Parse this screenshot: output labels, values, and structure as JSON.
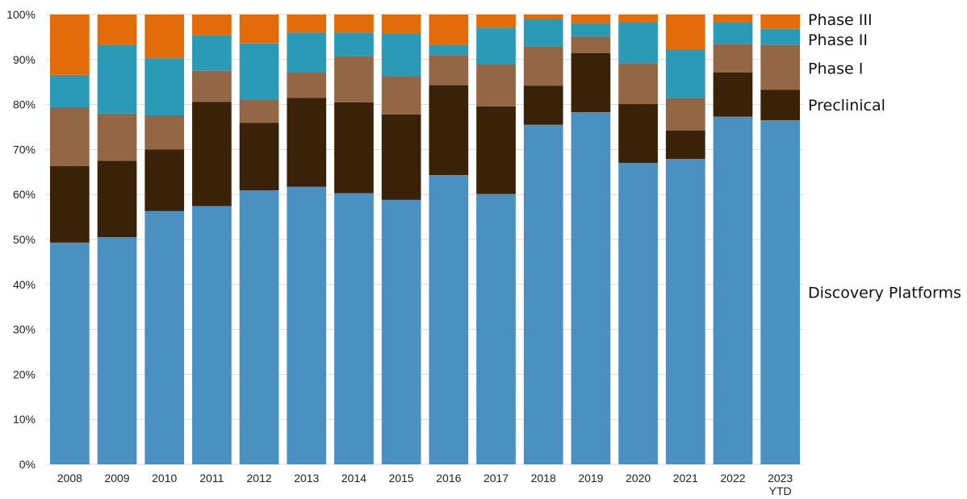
{
  "chart_data": {
    "type": "bar",
    "stacked": true,
    "percent_stacked": true,
    "title": "",
    "xlabel": "",
    "ylabel": "",
    "ylim": [
      0,
      100
    ],
    "y_ticks": [
      "0%",
      "10%",
      "20%",
      "30%",
      "40%",
      "50%",
      "60%",
      "70%",
      "80%",
      "90%",
      "100%"
    ],
    "categories": [
      "2008",
      "2009",
      "2010",
      "2011",
      "2012",
      "2013",
      "2014",
      "2015",
      "2016",
      "2017",
      "2018",
      "2019",
      "2020",
      "2021",
      "2022",
      "2023 YTD"
    ],
    "series": [
      {
        "name": "Discovery Platforms",
        "color": "#4a90c0",
        "values": [
          49.3,
          50.5,
          56.3,
          57.4,
          60.9,
          61.7,
          60.3,
          58.8,
          64.3,
          60.1,
          75.5,
          78.3,
          67.0,
          67.9,
          77.3,
          76.5
        ]
      },
      {
        "name": "Preclinical",
        "color": "#3a2208",
        "values": [
          17.0,
          17.0,
          13.7,
          23.2,
          15.0,
          19.8,
          20.2,
          19.0,
          20.0,
          19.5,
          8.7,
          13.1,
          13.1,
          6.3,
          9.8,
          6.8
        ]
      },
      {
        "name": "Phase I",
        "color": "#936745",
        "values": [
          13.1,
          10.5,
          7.6,
          6.9,
          5.1,
          5.7,
          10.2,
          8.5,
          6.7,
          9.3,
          8.7,
          3.8,
          9.1,
          7.3,
          6.4,
          9.9
        ]
      },
      {
        "name": "Phase II",
        "color": "#2b9ab6",
        "values": [
          7.2,
          15.3,
          12.7,
          8.0,
          12.6,
          8.8,
          5.3,
          9.4,
          2.3,
          8.2,
          6.2,
          2.9,
          9.1,
          10.8,
          4.8,
          3.6
        ]
      },
      {
        "name": "Phase III",
        "color": "#e36c0a",
        "values": [
          13.4,
          6.7,
          9.7,
          4.5,
          6.4,
          4.0,
          4.0,
          4.3,
          6.7,
          2.9,
          0.9,
          1.9,
          1.7,
          7.7,
          1.7,
          3.2
        ]
      }
    ],
    "legend_position": "right, aligned to top bar segments"
  }
}
